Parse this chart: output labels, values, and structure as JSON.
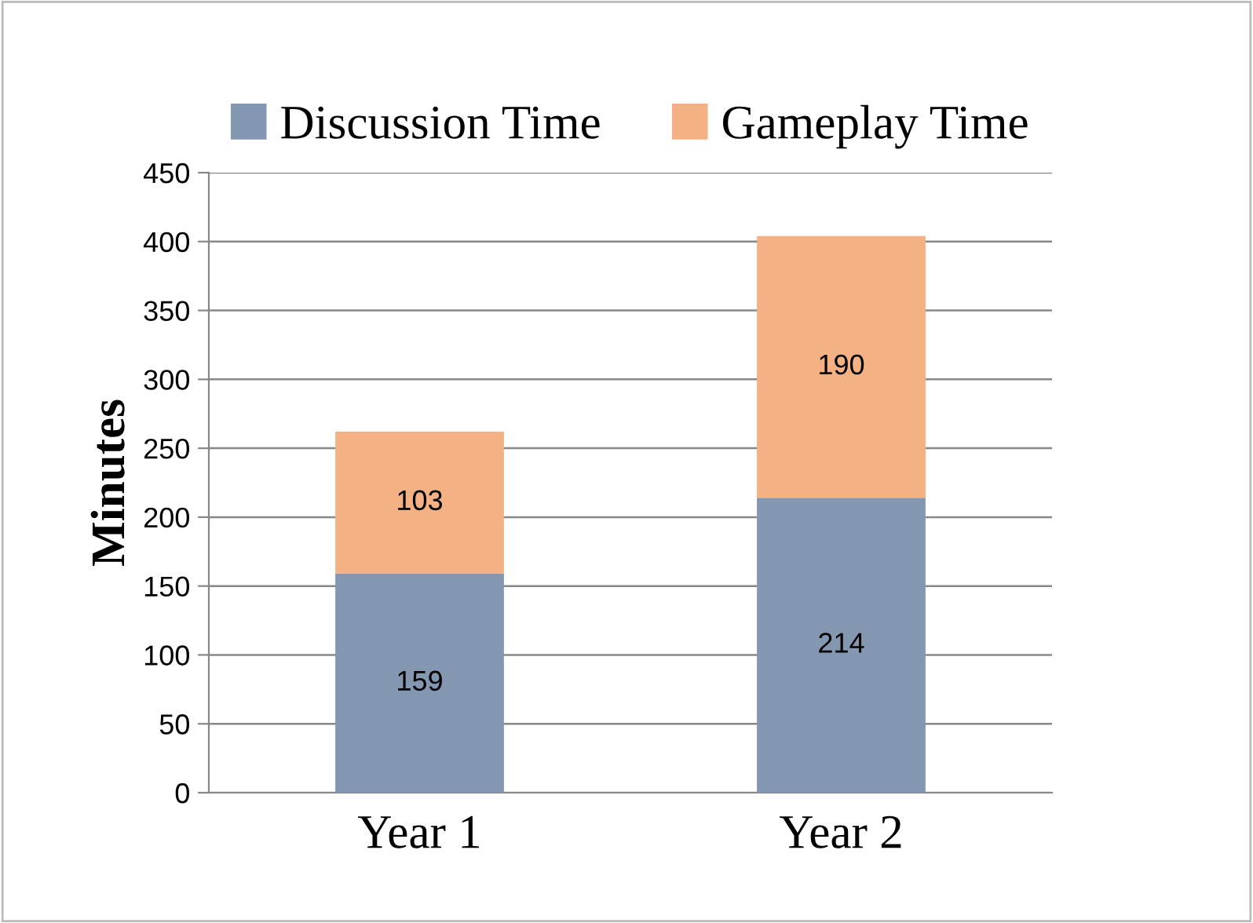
{
  "chart_data": {
    "type": "bar",
    "stacked": true,
    "ylabel": "Minutes",
    "categories": [
      "Year 1",
      "Year 2"
    ],
    "series": [
      {
        "name": "Discussion Time",
        "color": "#8497b0",
        "values": [
          159,
          214
        ]
      },
      {
        "name": "Gameplay Time",
        "color": "#f4b183",
        "values": [
          103,
          190
        ]
      }
    ],
    "ylim": [
      0,
      450
    ],
    "yticks": [
      0,
      50,
      100,
      150,
      200,
      250,
      300,
      350,
      400,
      450
    ],
    "grid": "y",
    "legend": "top",
    "data_labels": true
  }
}
